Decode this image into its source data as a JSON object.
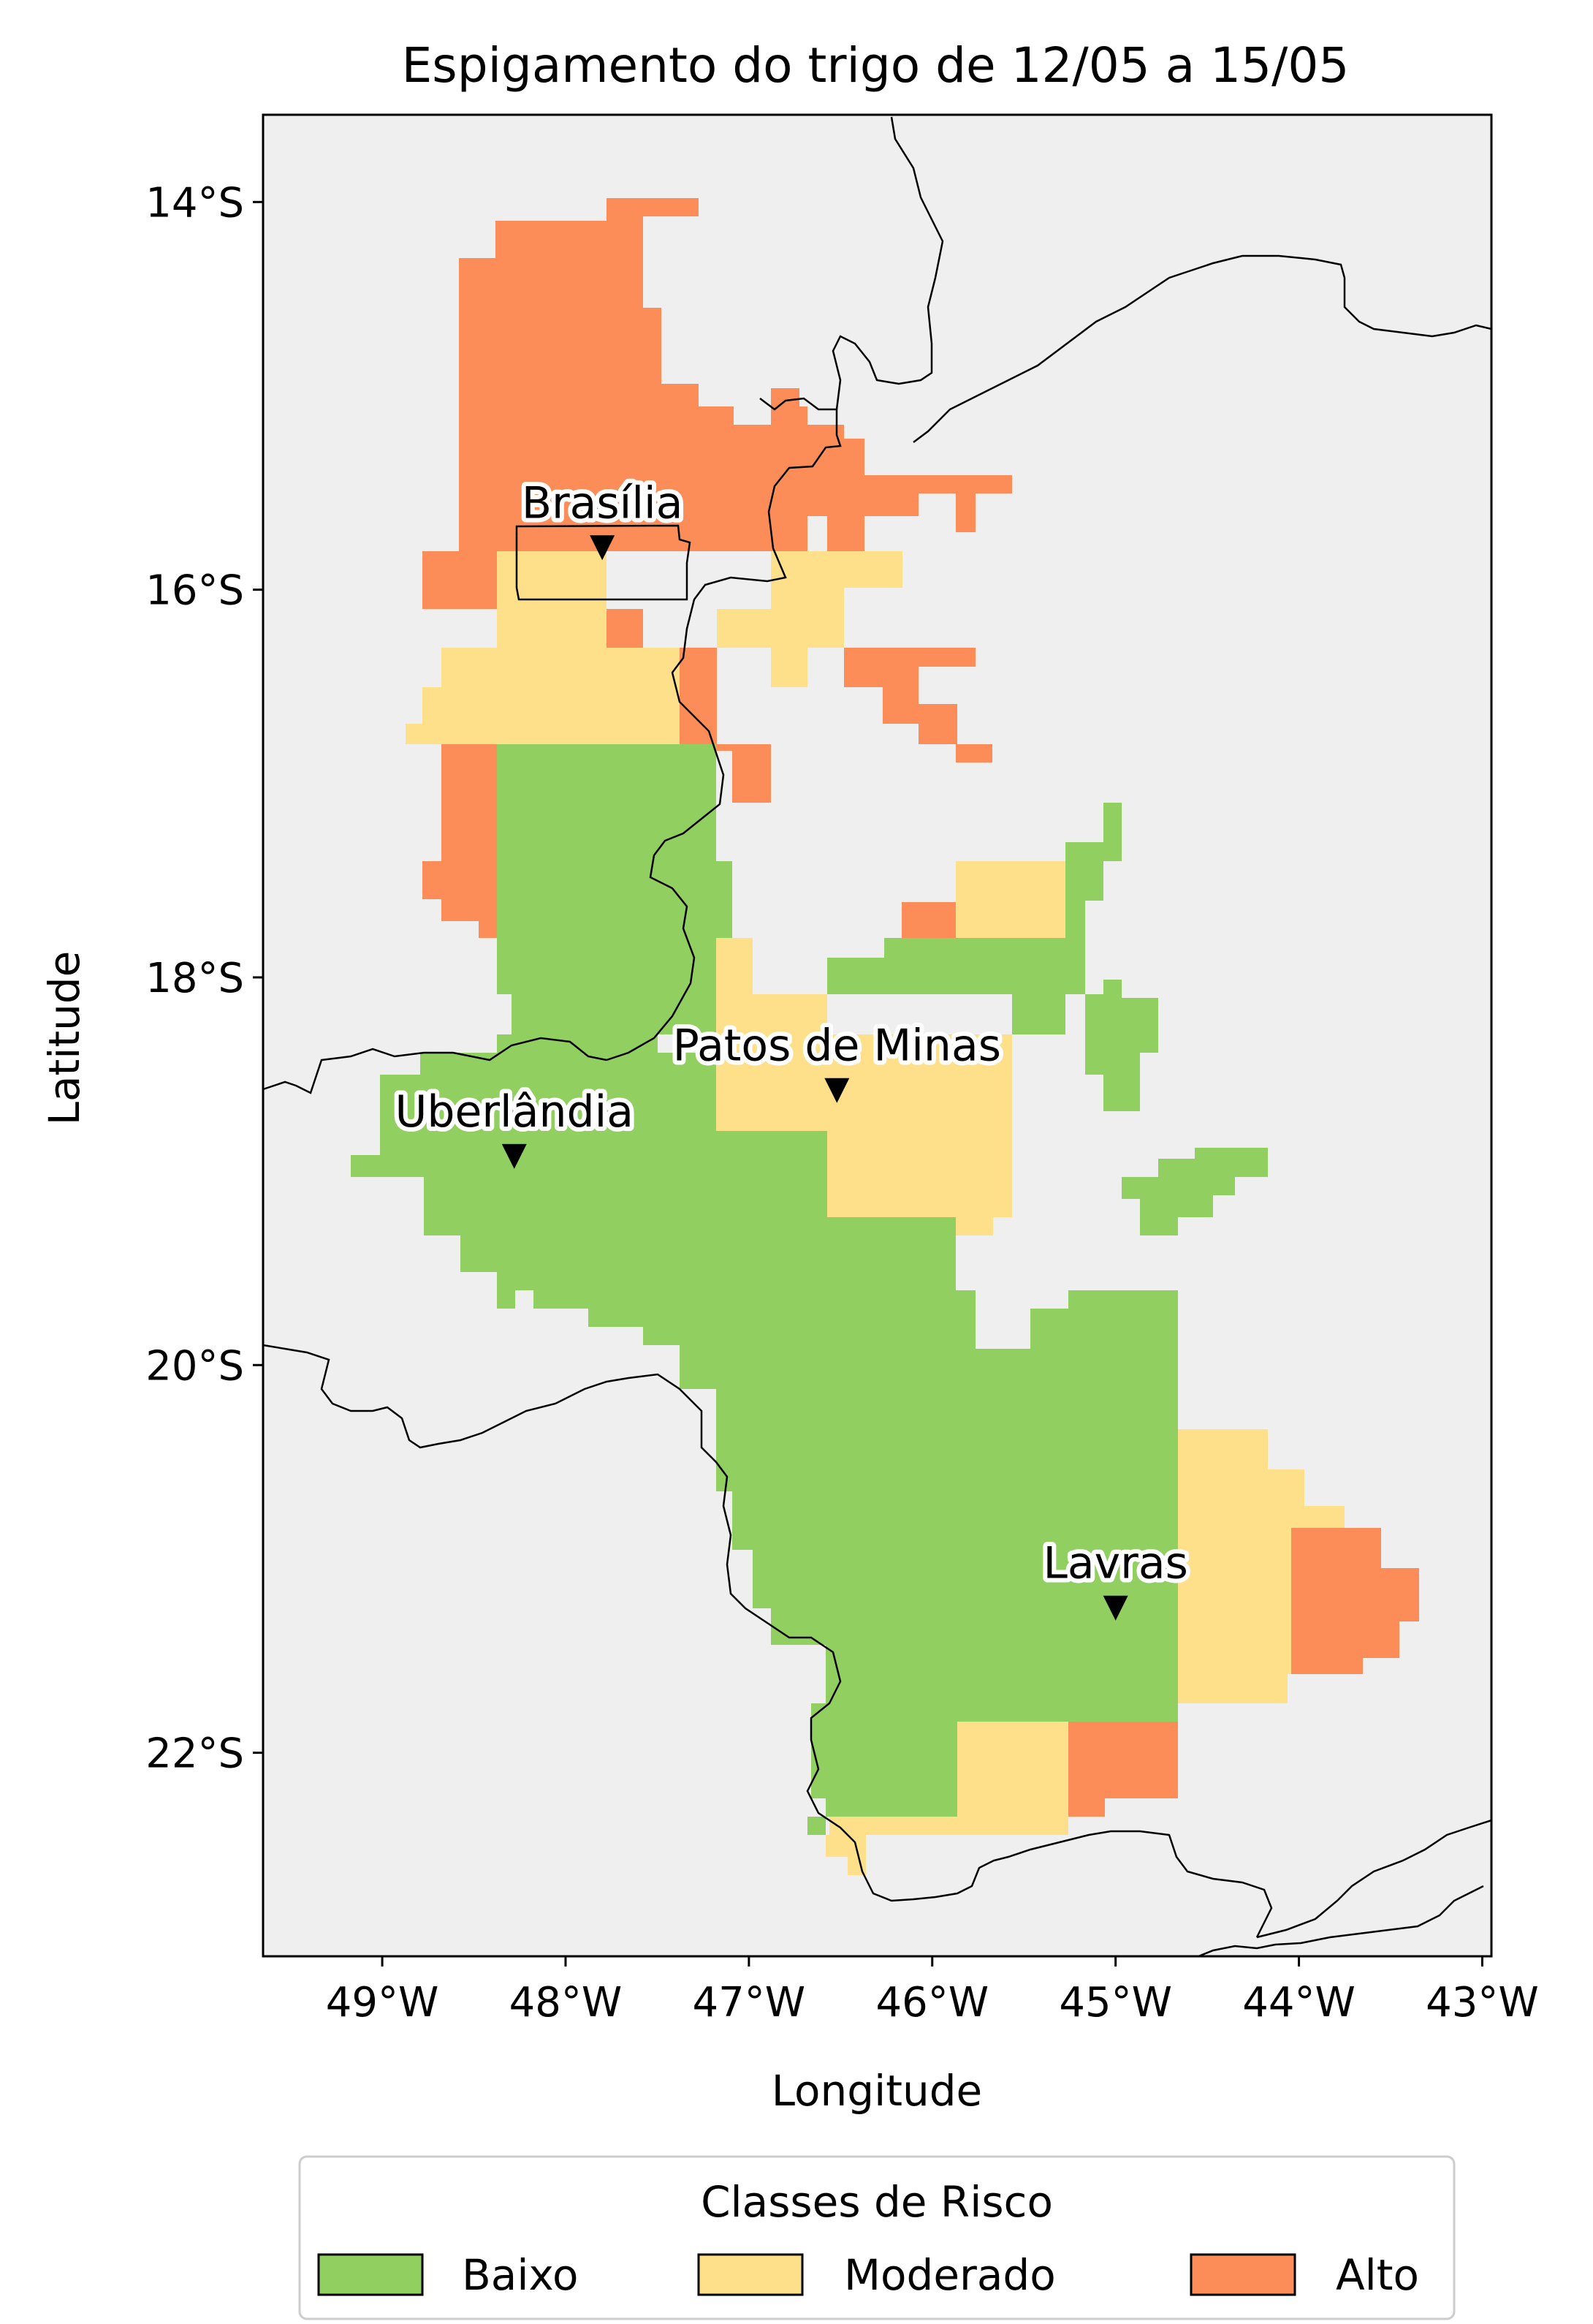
{
  "title": "Espigamento do trigo de 12/05 a 15/05",
  "axes": {
    "xlabel": "Longitude",
    "ylabel": "Latitude",
    "xticks": [
      "49°W",
      "48°W",
      "47°W",
      "46°W",
      "45°W",
      "44°W",
      "43°W"
    ],
    "yticks": [
      "14°S",
      "16°S",
      "18°S",
      "20°S",
      "22°S"
    ],
    "lon_range": [
      -49.65,
      -42.95
    ],
    "lat_range": [
      -23.05,
      -13.55
    ]
  },
  "cities": [
    {
      "name": "Brasília",
      "lon": -47.8,
      "lat": -15.78
    },
    {
      "name": "Patos de Minas",
      "lon": -46.52,
      "lat": -18.58
    },
    {
      "name": "Uberlândia",
      "lon": -48.28,
      "lat": -18.92
    },
    {
      "name": "Lavras",
      "lon": -45.0,
      "lat": -21.25
    }
  ],
  "legend": {
    "title": "Classes de Risco",
    "items": [
      {
        "label": "Baixo",
        "color": "#91cf60"
      },
      {
        "label": "Moderado",
        "color": "#fee08b"
      },
      {
        "label": "Alto",
        "color": "#fc8d59"
      }
    ]
  },
  "colors": {
    "background": "#efefef",
    "baixo": "#91cf60",
    "moderado": "#fee08b",
    "alto": "#fc8d59"
  }
}
